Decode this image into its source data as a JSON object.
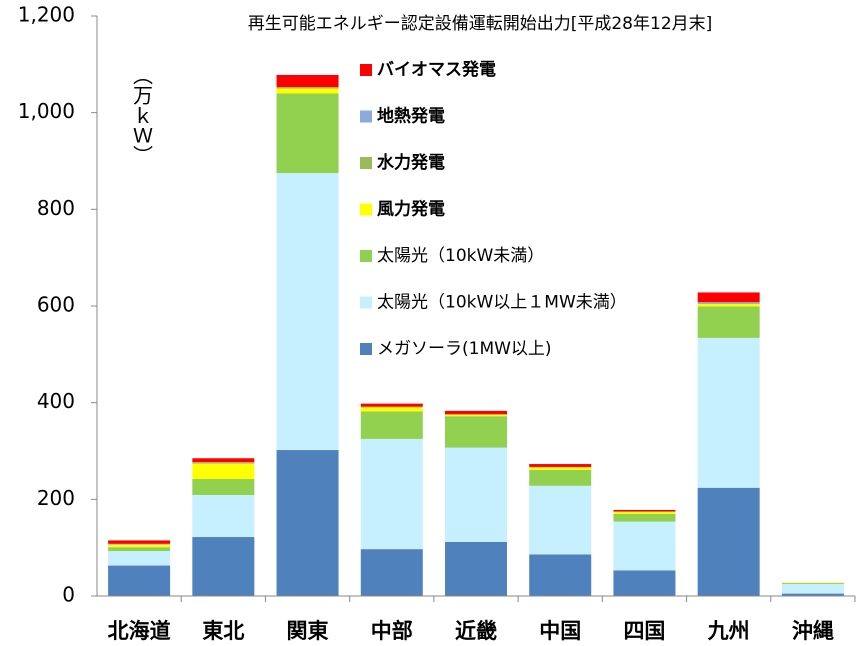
{
  "chart_data": {
    "type": "stacked-bar",
    "title": "再生可能エネルギー認定設備運転開始出力[平成28年12月末]",
    "y_label": "（万ｋＷ）",
    "categories": [
      "北海道",
      "東北",
      "関東",
      "中部",
      "近畿",
      "中国",
      "四国",
      "九州",
      "沖縄"
    ],
    "series": [
      {
        "name": "メガソーラ(1MW以上)",
        "color": "#4f81bd",
        "values": [
          63,
          122,
          302,
          97,
          112,
          86,
          53,
          224,
          5
        ]
      },
      {
        "name": "太陽光（10kW以上１MW未満）",
        "color": "#c6efff",
        "values": [
          30,
          87,
          573,
          228,
          195,
          142,
          101,
          310,
          20
        ]
      },
      {
        "name": "太陽光（10kW未満）",
        "color": "#92d050",
        "values": [
          8,
          33,
          165,
          57,
          65,
          33,
          16,
          65,
          2
        ]
      },
      {
        "name": "風力発電",
        "color": "#ffff00",
        "values": [
          5,
          32,
          10,
          8,
          3,
          5,
          4,
          5,
          1
        ]
      },
      {
        "name": "水力発電",
        "color": "#9bbb59",
        "values": [
          1,
          2,
          3,
          2,
          1,
          1,
          1,
          1,
          0
        ]
      },
      {
        "name": "地熱発電",
        "color": "#8ea9db",
        "values": [
          1,
          1,
          0,
          0,
          0,
          0,
          0,
          3,
          0
        ]
      },
      {
        "name": "バイオマス発電",
        "color": "#ff0000",
        "values": [
          7,
          8,
          25,
          6,
          7,
          6,
          3,
          20,
          0
        ]
      }
    ],
    "ylim": [
      0,
      1200
    ],
    "yticks": [
      0,
      200,
      400,
      600,
      800,
      {
        "value": 1000,
        "label": "1,000"
      },
      {
        "value": 1200,
        "label": "1,200"
      }
    ],
    "grid": false,
    "legend": "top-center"
  }
}
